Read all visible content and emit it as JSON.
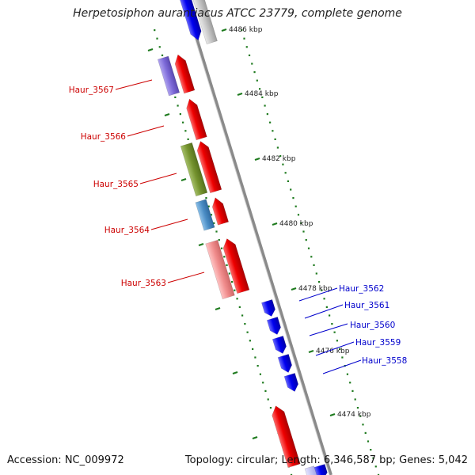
{
  "title": "Herpetosiphon aurantiacus ATCC 23779, complete genome",
  "footer": {
    "accession": "Accession: NC_009972",
    "summary": "Topology: circular; Length: 6,346,587 bp; Genes: 5,042"
  },
  "colors": {
    "backbone": "#888888",
    "tick_dots": "#1e7a1e",
    "forward_label": "#cc0000",
    "reverse_label": "#0000cc"
  },
  "scale_ticks": [
    "4486 kbp",
    "4484 kbp",
    "4482 kbp",
    "4480 kbp",
    "4478 kbp",
    "4476 kbp",
    "4474 kbp"
  ],
  "gene_labels": [
    {
      "name": "Haur_3567",
      "strand": "forward"
    },
    {
      "name": "Haur_3566",
      "strand": "forward"
    },
    {
      "name": "Haur_3565",
      "strand": "forward"
    },
    {
      "name": "Haur_3564",
      "strand": "forward"
    },
    {
      "name": "Haur_3563",
      "strand": "forward"
    },
    {
      "name": "Haur_3562",
      "strand": "reverse"
    },
    {
      "name": "Haur_3561",
      "strand": "reverse"
    },
    {
      "name": "Haur_3560",
      "strand": "reverse"
    },
    {
      "name": "Haur_3559",
      "strand": "reverse"
    },
    {
      "name": "Haur_3558",
      "strand": "reverse"
    }
  ]
}
